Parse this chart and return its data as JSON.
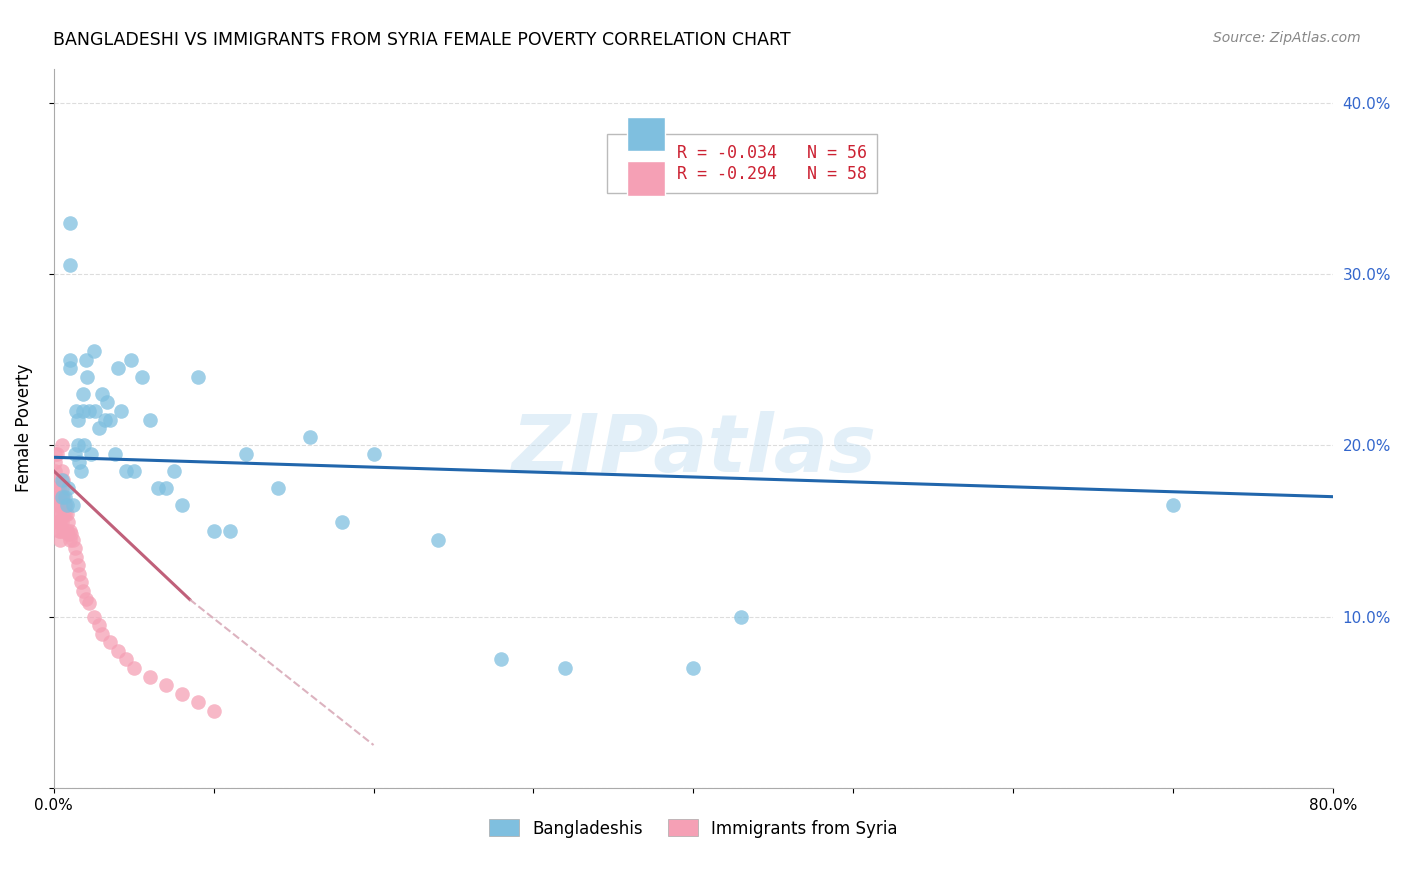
{
  "title": "BANGLADESHI VS IMMIGRANTS FROM SYRIA FEMALE POVERTY CORRELATION CHART",
  "source": "Source: ZipAtlas.com",
  "ylabel": "Female Poverty",
  "yticks": [
    0.0,
    0.1,
    0.2,
    0.3,
    0.4
  ],
  "ytick_labels": [
    "",
    "10.0%",
    "20.0%",
    "30.0%",
    "40.0%"
  ],
  "xlim": [
    0.0,
    0.8
  ],
  "ylim": [
    0.0,
    0.42
  ],
  "watermark": "ZIPatlas",
  "bangladeshi_color": "#7fbfdf",
  "syrian_color": "#f5a0b5",
  "trend_bangladeshi_color": "#2166ac",
  "trend_syrian_solid_color": "#c0607a",
  "trend_syrian_dashed_color": "#d4a0b0",
  "legend_R1": "R = -0.034",
  "legend_N1": "N = 56",
  "legend_R2": "R = -0.294",
  "legend_N2": "N = 58",
  "legend_label1": "Bangladeshis",
  "legend_label2": "Immigrants from Syria",
  "bangladeshi_x": [
    0.005,
    0.005,
    0.007,
    0.008,
    0.009,
    0.01,
    0.01,
    0.01,
    0.01,
    0.012,
    0.013,
    0.014,
    0.015,
    0.015,
    0.016,
    0.017,
    0.018,
    0.018,
    0.019,
    0.02,
    0.021,
    0.022,
    0.023,
    0.025,
    0.026,
    0.028,
    0.03,
    0.032,
    0.033,
    0.035,
    0.038,
    0.04,
    0.042,
    0.045,
    0.048,
    0.05,
    0.055,
    0.06,
    0.065,
    0.07,
    0.075,
    0.08,
    0.09,
    0.1,
    0.11,
    0.12,
    0.14,
    0.16,
    0.18,
    0.2,
    0.24,
    0.28,
    0.32,
    0.4,
    0.43,
    0.7
  ],
  "bangladeshi_y": [
    0.17,
    0.18,
    0.17,
    0.165,
    0.175,
    0.33,
    0.305,
    0.25,
    0.245,
    0.165,
    0.195,
    0.22,
    0.215,
    0.2,
    0.19,
    0.185,
    0.23,
    0.22,
    0.2,
    0.25,
    0.24,
    0.22,
    0.195,
    0.255,
    0.22,
    0.21,
    0.23,
    0.215,
    0.225,
    0.215,
    0.195,
    0.245,
    0.22,
    0.185,
    0.25,
    0.185,
    0.24,
    0.215,
    0.175,
    0.175,
    0.185,
    0.165,
    0.24,
    0.15,
    0.15,
    0.195,
    0.175,
    0.205,
    0.155,
    0.195,
    0.145,
    0.075,
    0.07,
    0.07,
    0.1,
    0.165
  ],
  "syrian_x": [
    0.001,
    0.001,
    0.001,
    0.001,
    0.002,
    0.002,
    0.002,
    0.002,
    0.002,
    0.003,
    0.003,
    0.003,
    0.003,
    0.003,
    0.004,
    0.004,
    0.004,
    0.004,
    0.004,
    0.005,
    0.005,
    0.005,
    0.005,
    0.005,
    0.006,
    0.006,
    0.006,
    0.006,
    0.007,
    0.007,
    0.008,
    0.008,
    0.009,
    0.009,
    0.01,
    0.01,
    0.011,
    0.012,
    0.013,
    0.014,
    0.015,
    0.016,
    0.017,
    0.018,
    0.02,
    0.022,
    0.025,
    0.028,
    0.03,
    0.035,
    0.04,
    0.045,
    0.05,
    0.06,
    0.07,
    0.08,
    0.09,
    0.1
  ],
  "syrian_y": [
    0.195,
    0.19,
    0.185,
    0.18,
    0.195,
    0.175,
    0.165,
    0.16,
    0.155,
    0.175,
    0.17,
    0.16,
    0.155,
    0.15,
    0.17,
    0.165,
    0.155,
    0.15,
    0.145,
    0.2,
    0.185,
    0.175,
    0.165,
    0.155,
    0.18,
    0.17,
    0.16,
    0.15,
    0.165,
    0.16,
    0.16,
    0.15,
    0.155,
    0.148,
    0.15,
    0.145,
    0.148,
    0.145,
    0.14,
    0.135,
    0.13,
    0.125,
    0.12,
    0.115,
    0.11,
    0.108,
    0.1,
    0.095,
    0.09,
    0.085,
    0.08,
    0.075,
    0.07,
    0.065,
    0.06,
    0.055,
    0.05,
    0.045
  ],
  "trend_b_x0": 0.0,
  "trend_b_y0": 0.193,
  "trend_b_x1": 0.8,
  "trend_b_y1": 0.17,
  "trend_s_solid_x0": 0.0,
  "trend_s_solid_y0": 0.185,
  "trend_s_solid_x1": 0.085,
  "trend_s_solid_y1": 0.11,
  "trend_s_dash_x0": 0.085,
  "trend_s_dash_y0": 0.11,
  "trend_s_dash_x1": 0.2,
  "trend_s_dash_y1": 0.025
}
